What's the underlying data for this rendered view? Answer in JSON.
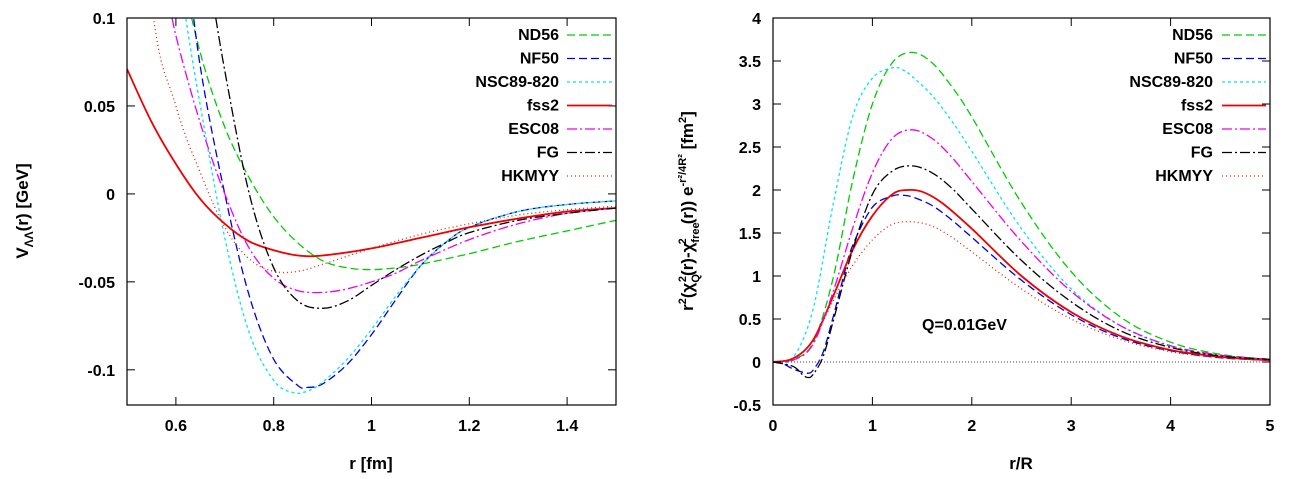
{
  "chart_data": [
    {
      "type": "line",
      "xlabel": "r [fm]",
      "ylabel": "V",
      "ylabel_sub": "ΛΛ",
      "ylabel_tail": "(r) [GeV]",
      "xlim": [
        0.5,
        1.5
      ],
      "ylim": [
        -0.12,
        0.1
      ],
      "xticks": [
        0.6,
        0.8,
        1,
        1.2,
        1.4
      ],
      "yticks": [
        0.1,
        0.05,
        0,
        -0.05,
        -0.1
      ],
      "grid": false,
      "legend": "top-right",
      "series": [
        {
          "name": "ND56",
          "color": "#00cc00",
          "dash": "8,4",
          "x": [
            0.6,
            0.65,
            0.7,
            0.75,
            0.8,
            0.85,
            0.9,
            0.95,
            1.0,
            1.05,
            1.1,
            1.2,
            1.3,
            1.4,
            1.5
          ],
          "y": [
            0.14,
            0.08,
            0.038,
            0.009,
            -0.013,
            -0.028,
            -0.038,
            -0.042,
            -0.043,
            -0.042,
            -0.04,
            -0.034,
            -0.027,
            -0.021,
            -0.015
          ]
        },
        {
          "name": "NF50",
          "color": "#0000dd",
          "dash": "8,4",
          "x": [
            0.62,
            0.65,
            0.7,
            0.75,
            0.8,
            0.85,
            0.87,
            0.9,
            0.95,
            1.0,
            1.05,
            1.1,
            1.15,
            1.2,
            1.3,
            1.4,
            1.5
          ],
          "y": [
            0.14,
            0.072,
            0.0,
            -0.058,
            -0.094,
            -0.109,
            -0.11,
            -0.108,
            -0.097,
            -0.08,
            -0.06,
            -0.041,
            -0.028,
            -0.019,
            -0.01,
            -0.006,
            -0.004
          ]
        },
        {
          "name": "NSC89-820",
          "color": "#00e5ee",
          "dash": "3,3",
          "x": [
            0.6,
            0.62,
            0.65,
            0.7,
            0.75,
            0.8,
            0.84,
            0.87,
            0.9,
            0.95,
            1.0,
            1.05,
            1.1,
            1.15,
            1.2,
            1.3,
            1.4,
            1.5
          ],
          "y": [
            0.14,
            0.1,
            0.05,
            -0.025,
            -0.079,
            -0.106,
            -0.113,
            -0.112,
            -0.107,
            -0.094,
            -0.077,
            -0.058,
            -0.041,
            -0.028,
            -0.019,
            -0.01,
            -0.006,
            -0.004
          ]
        },
        {
          "name": "fss2",
          "color": "#ee0000",
          "dash": "",
          "x": [
            0.5,
            0.55,
            0.6,
            0.65,
            0.7,
            0.75,
            0.8,
            0.85,
            0.9,
            1.0,
            1.1,
            1.2,
            1.3,
            1.4,
            1.5
          ],
          "y": [
            0.071,
            0.041,
            0.017,
            -0.003,
            -0.017,
            -0.027,
            -0.032,
            -0.035,
            -0.035,
            -0.031,
            -0.025,
            -0.019,
            -0.014,
            -0.01,
            -0.008
          ]
        },
        {
          "name": "ESC08",
          "color": "#ee00ee",
          "dash": "10,3,2,3",
          "x": [
            0.58,
            0.6,
            0.65,
            0.7,
            0.75,
            0.8,
            0.85,
            0.9,
            0.95,
            1.0,
            1.05,
            1.1,
            1.2,
            1.3,
            1.4,
            1.5
          ],
          "y": [
            0.12,
            0.09,
            0.04,
            0.0,
            -0.031,
            -0.048,
            -0.055,
            -0.056,
            -0.054,
            -0.05,
            -0.045,
            -0.038,
            -0.026,
            -0.017,
            -0.011,
            -0.008
          ]
        },
        {
          "name": "FG",
          "color": "#000000",
          "dash": "10,3,2,3",
          "x": [
            0.67,
            0.7,
            0.75,
            0.8,
            0.85,
            0.9,
            0.95,
            1.0,
            1.05,
            1.1,
            1.15,
            1.2,
            1.3,
            1.4,
            1.5
          ],
          "y": [
            0.12,
            0.07,
            0.0,
            -0.042,
            -0.061,
            -0.065,
            -0.061,
            -0.052,
            -0.043,
            -0.035,
            -0.028,
            -0.022,
            -0.015,
            -0.011,
            -0.008
          ]
        },
        {
          "name": "HKMYY",
          "color": "#dd2200",
          "dash": "1,3",
          "x": [
            0.5,
            0.55,
            0.6,
            0.65,
            0.7,
            0.75,
            0.8,
            0.85,
            0.9,
            1.0,
            1.1,
            1.2,
            1.3,
            1.4,
            1.5
          ],
          "y": [
            0.3,
            0.11,
            0.05,
            0.012,
            -0.019,
            -0.037,
            -0.044,
            -0.044,
            -0.04,
            -0.031,
            -0.023,
            -0.017,
            -0.012,
            -0.009,
            -0.007
          ]
        }
      ]
    },
    {
      "type": "line",
      "xlabel": "r/R",
      "xlim": [
        0,
        5
      ],
      "ylim": [
        -0.5,
        4
      ],
      "xticks": [
        0,
        1,
        2,
        3,
        4,
        5
      ],
      "yticks": [
        4,
        3.5,
        3,
        2.5,
        2,
        1.5,
        1,
        0.5,
        0,
        -0.5
      ],
      "grid": false,
      "legend": "top-right",
      "annotation": "Q=0.01GeV",
      "series": [
        {
          "name": "ND56",
          "color": "#00cc00",
          "dash": "8,4",
          "x": [
            0,
            0.2,
            0.4,
            0.6,
            0.8,
            1.0,
            1.2,
            1.4,
            1.6,
            1.8,
            2.0,
            2.5,
            3.0,
            3.5,
            4.0,
            4.5,
            5.0
          ],
          "y": [
            0,
            0.03,
            0.22,
            0.95,
            2.1,
            3.0,
            3.48,
            3.6,
            3.48,
            3.2,
            2.85,
            1.85,
            1.05,
            0.52,
            0.23,
            0.09,
            0.03
          ]
        },
        {
          "name": "NF50",
          "color": "#0000dd",
          "dash": "8,4",
          "x": [
            0,
            0.1,
            0.2,
            0.3,
            0.35,
            0.4,
            0.5,
            0.6,
            0.7,
            0.8,
            1.0,
            1.2,
            1.3,
            1.4,
            1.6,
            1.8,
            2.0,
            2.5,
            3.0,
            3.5,
            4.0,
            4.5,
            5.0
          ],
          "y": [
            0,
            -0.02,
            -0.08,
            -0.12,
            -0.13,
            -0.1,
            0.1,
            0.5,
            0.95,
            1.35,
            1.8,
            1.93,
            1.94,
            1.92,
            1.82,
            1.65,
            1.45,
            0.95,
            0.55,
            0.28,
            0.13,
            0.05,
            0.02
          ]
        },
        {
          "name": "NSC89-820",
          "color": "#00e5ee",
          "dash": "3,3",
          "x": [
            0,
            0.2,
            0.4,
            0.6,
            0.8,
            1.0,
            1.2,
            1.3,
            1.4,
            1.6,
            1.8,
            2.0,
            2.5,
            3.0,
            3.5,
            4.0,
            4.5,
            5.0
          ],
          "y": [
            0,
            0.05,
            0.6,
            1.8,
            2.85,
            3.3,
            3.42,
            3.4,
            3.32,
            3.1,
            2.8,
            2.45,
            1.55,
            0.85,
            0.42,
            0.18,
            0.07,
            0.02
          ]
        },
        {
          "name": "fss2",
          "color": "#ee0000",
          "dash": "",
          "x": [
            0,
            0.2,
            0.4,
            0.6,
            0.8,
            1.0,
            1.2,
            1.35,
            1.5,
            1.7,
            2.0,
            2.5,
            3.0,
            3.5,
            4.0,
            4.5,
            5.0
          ],
          "y": [
            0,
            0.04,
            0.25,
            0.75,
            1.3,
            1.7,
            1.95,
            2.0,
            1.98,
            1.85,
            1.55,
            1.0,
            0.58,
            0.3,
            0.14,
            0.06,
            0.02
          ]
        },
        {
          "name": "ESC08",
          "color": "#ee00ee",
          "dash": "10,3,2,3",
          "x": [
            0,
            0.2,
            0.4,
            0.6,
            0.8,
            1.0,
            1.2,
            1.4,
            1.6,
            1.8,
            2.0,
            2.5,
            3.0,
            3.5,
            4.0,
            4.5,
            5.0
          ],
          "y": [
            0,
            0.02,
            0.2,
            0.8,
            1.55,
            2.2,
            2.6,
            2.7,
            2.6,
            2.38,
            2.1,
            1.4,
            0.82,
            0.42,
            0.19,
            0.08,
            0.03
          ]
        },
        {
          "name": "FG",
          "color": "#000000",
          "dash": "10,3,2,3",
          "x": [
            0,
            0.2,
            0.3,
            0.35,
            0.4,
            0.5,
            0.6,
            0.8,
            1.0,
            1.2,
            1.4,
            1.6,
            1.8,
            2.0,
            2.5,
            3.0,
            3.5,
            4.0,
            4.5,
            5.0
          ],
          "y": [
            0,
            -0.05,
            -0.15,
            -0.18,
            -0.15,
            0.05,
            0.45,
            1.3,
            1.95,
            2.22,
            2.28,
            2.2,
            2.02,
            1.78,
            1.18,
            0.7,
            0.36,
            0.17,
            0.07,
            0.03
          ]
        },
        {
          "name": "HKMYY",
          "color": "#dd2200",
          "dash": "1,3",
          "x": [
            0,
            0.2,
            0.4,
            0.6,
            0.8,
            1.0,
            1.2,
            1.4,
            1.6,
            1.8,
            2.0,
            2.5,
            3.0,
            3.5,
            4.0,
            4.5,
            5.0
          ],
          "y": [
            0,
            0.04,
            0.25,
            0.7,
            1.12,
            1.42,
            1.6,
            1.63,
            1.58,
            1.45,
            1.28,
            0.85,
            0.5,
            0.26,
            0.12,
            0.05,
            0.02
          ]
        }
      ]
    }
  ]
}
